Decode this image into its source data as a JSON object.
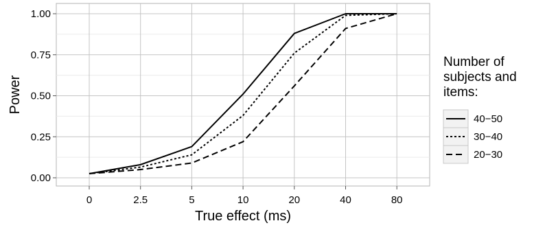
{
  "chart_data": {
    "type": "line",
    "xlabel": "True effect (ms)",
    "ylabel": "Power",
    "categories": [
      "0",
      "2.5",
      "5",
      "10",
      "20",
      "40",
      "80"
    ],
    "y_ticks": [
      "0.00",
      "0.25",
      "0.50",
      "0.75",
      "1.00"
    ],
    "y_tick_values": [
      0,
      0.25,
      0.5,
      0.75,
      1.0
    ],
    "ylim": [
      -0.05,
      1.05
    ],
    "grid": true,
    "legend_position": "right",
    "legend_title": [
      "Number of",
      "subjects and",
      "items:"
    ],
    "series": [
      {
        "name": "40−50",
        "dash": "solid",
        "values": [
          0.025,
          0.08,
          0.19,
          0.51,
          0.88,
          1.0,
          1.0
        ]
      },
      {
        "name": "30−40",
        "dash": "dotted",
        "values": [
          0.025,
          0.065,
          0.14,
          0.38,
          0.76,
          0.99,
          1.0
        ]
      },
      {
        "name": "20−30",
        "dash": "dashed",
        "values": [
          0.025,
          0.05,
          0.09,
          0.22,
          0.56,
          0.91,
          1.0
        ]
      }
    ]
  }
}
